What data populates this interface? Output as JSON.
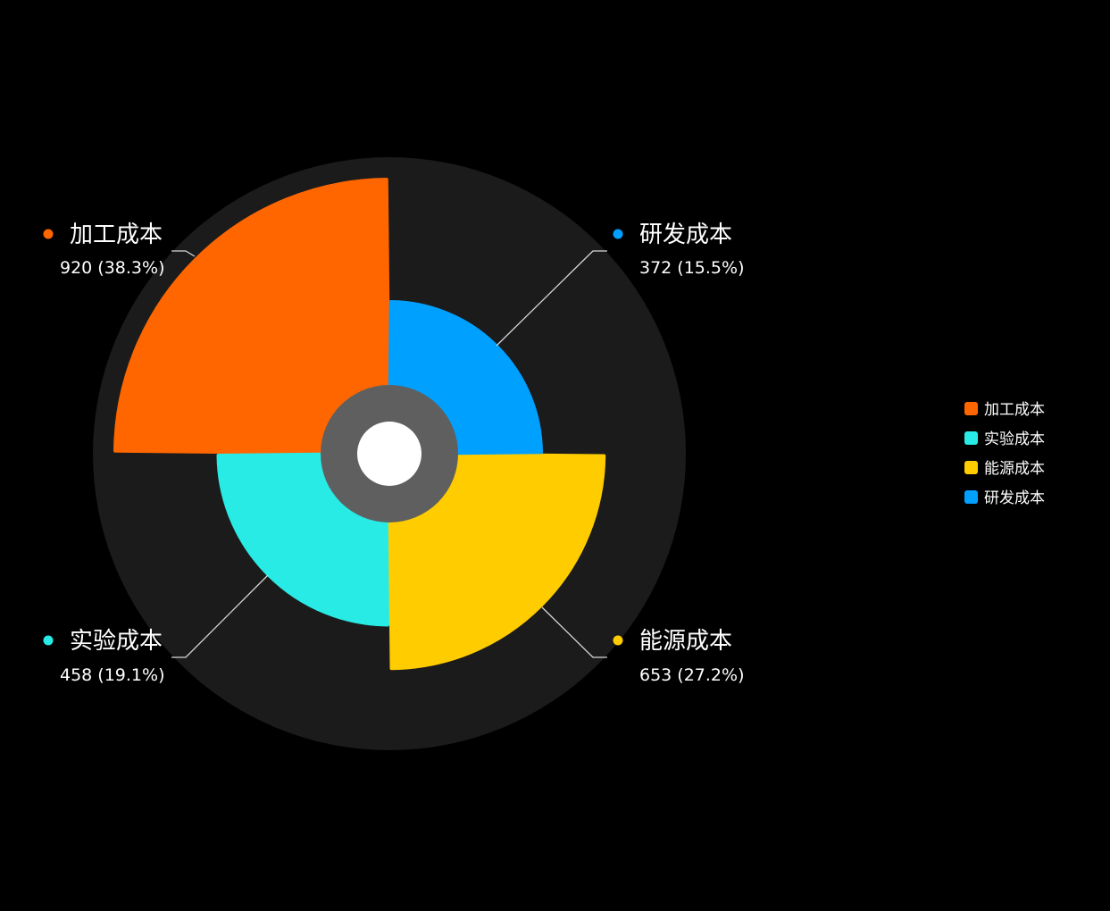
{
  "chart_data": {
    "type": "pie",
    "subtype": "rose",
    "categories": [
      "加工成本",
      "实验成本",
      "能源成本",
      "研发成本"
    ],
    "values": [
      920,
      458,
      653,
      372
    ],
    "percents": [
      "38.3%",
      "19.1%",
      "27.2%",
      "15.5%"
    ],
    "value_labels": [
      "920 (38.3%)",
      "458 (19.1%)",
      "653 (27.2%)",
      "372 (15.5%)"
    ],
    "colors": [
      "#FF6600",
      "#29EBE5",
      "#FFCC00",
      "#00A0FF"
    ],
    "legend": [
      "加工成本",
      "实验成本",
      "能源成本",
      "研发成本"
    ],
    "legend_position": "right",
    "background": "#000000",
    "ring_color": "#1B1B1B",
    "hub_color": "#5F5F5F",
    "center_color": "#FFFFFF",
    "leader_color": "#D8D8D8"
  }
}
